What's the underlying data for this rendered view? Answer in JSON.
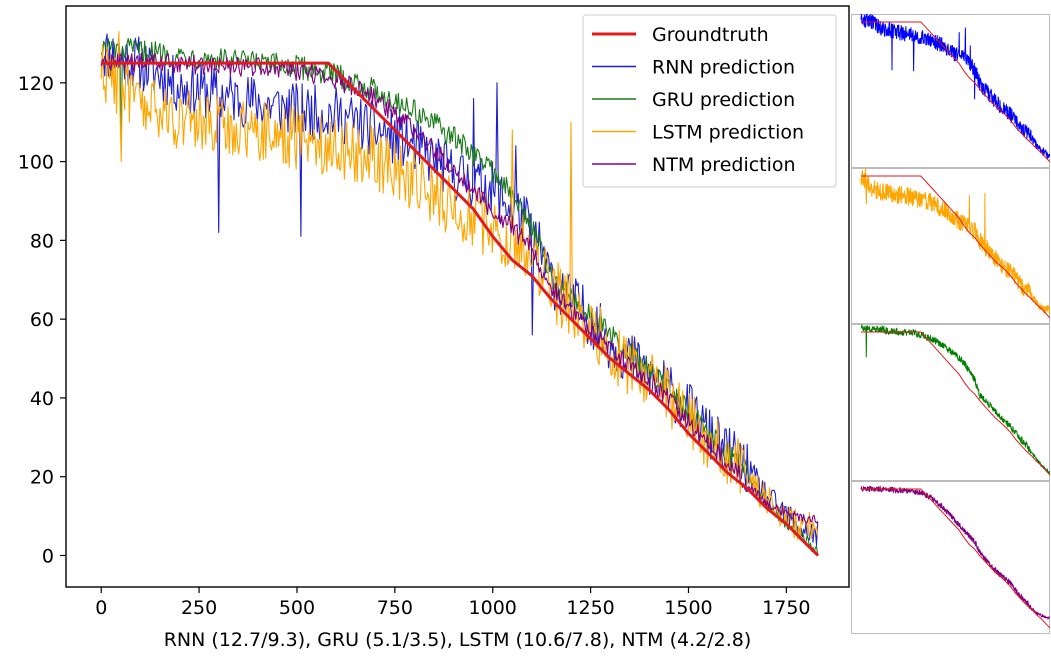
{
  "chart_data": {
    "type": "line",
    "xlabel": "RNN (12.7/9.3), GRU (5.1/3.5), LSTM (10.6/7.8), NTM (4.2/2.8)",
    "ylabel": "",
    "xlim": [
      -90,
      1910
    ],
    "ylim": [
      -8,
      139.5
    ],
    "xticks": [
      0,
      250,
      500,
      750,
      1000,
      1250,
      1500,
      1750
    ],
    "yticks": [
      0,
      20,
      40,
      60,
      80,
      100,
      120
    ],
    "grid": false,
    "legend_position": "top-right",
    "x_start": 0,
    "x_end": 1831,
    "groundtruth": {
      "name": "Groundtruth",
      "color": "#e31a1c",
      "points": [
        [
          0,
          125
        ],
        [
          580,
          125
        ],
        [
          600,
          123
        ],
        [
          650,
          118
        ],
        [
          700,
          113
        ],
        [
          750,
          108
        ],
        [
          800,
          103
        ],
        [
          850,
          98
        ],
        [
          900,
          93
        ],
        [
          950,
          88
        ],
        [
          1000,
          81
        ],
        [
          1050,
          75
        ],
        [
          1100,
          71
        ],
        [
          1150,
          65
        ],
        [
          1200,
          60
        ],
        [
          1250,
          55
        ],
        [
          1300,
          50
        ],
        [
          1350,
          46
        ],
        [
          1400,
          42
        ],
        [
          1450,
          37
        ],
        [
          1500,
          31
        ],
        [
          1550,
          26
        ],
        [
          1600,
          21
        ],
        [
          1650,
          17
        ],
        [
          1700,
          12
        ],
        [
          1750,
          8
        ],
        [
          1800,
          3
        ],
        [
          1831,
          0
        ]
      ]
    },
    "series": [
      {
        "name": "RNN prediction",
        "color": "#1f1fcc",
        "points": [
          [
            0,
            128
          ],
          [
            100,
            125
          ],
          [
            200,
            119
          ],
          [
            300,
            117
          ],
          [
            400,
            115
          ],
          [
            500,
            113
          ],
          [
            600,
            112
          ],
          [
            700,
            108
          ],
          [
            800,
            104
          ],
          [
            900,
            97
          ],
          [
            1000,
            93
          ],
          [
            1100,
            83
          ],
          [
            1150,
            70
          ],
          [
            1200,
            65
          ],
          [
            1250,
            60
          ],
          [
            1300,
            54
          ],
          [
            1350,
            50
          ],
          [
            1400,
            46
          ],
          [
            1450,
            42
          ],
          [
            1500,
            37
          ],
          [
            1550,
            31
          ],
          [
            1600,
            26
          ],
          [
            1650,
            22
          ],
          [
            1700,
            15
          ],
          [
            1750,
            10
          ],
          [
            1800,
            6
          ],
          [
            1831,
            5
          ]
        ],
        "spikes": [
          [
            300,
            82
          ],
          [
            510,
            81
          ],
          [
            950,
            116
          ],
          [
            1010,
            120
          ],
          [
            1060,
            104
          ],
          [
            1100,
            56
          ]
        ],
        "noise": 7
      },
      {
        "name": "GRU prediction",
        "color": "#1a7a1a",
        "points": [
          [
            0,
            129
          ],
          [
            100,
            128
          ],
          [
            200,
            127
          ],
          [
            300,
            126
          ],
          [
            400,
            125
          ],
          [
            500,
            124
          ],
          [
            600,
            122
          ],
          [
            700,
            118
          ],
          [
            800,
            113
          ],
          [
            900,
            106
          ],
          [
            1000,
            98
          ],
          [
            1100,
            84
          ],
          [
            1150,
            70
          ],
          [
            1200,
            66
          ],
          [
            1250,
            61
          ],
          [
            1300,
            56
          ],
          [
            1350,
            51
          ],
          [
            1400,
            47
          ],
          [
            1450,
            42
          ],
          [
            1500,
            37
          ],
          [
            1550,
            31
          ],
          [
            1600,
            26
          ],
          [
            1650,
            21
          ],
          [
            1700,
            14
          ],
          [
            1750,
            8
          ],
          [
            1800,
            4
          ],
          [
            1831,
            1
          ]
        ],
        "spikes": [
          [
            50,
            103
          ]
        ],
        "noise": 3
      },
      {
        "name": "LSTM prediction",
        "color": "#ffa500",
        "points": [
          [
            0,
            124
          ],
          [
            100,
            114
          ],
          [
            200,
            111
          ],
          [
            300,
            109
          ],
          [
            400,
            108
          ],
          [
            500,
            106
          ],
          [
            600,
            104
          ],
          [
            700,
            101
          ],
          [
            800,
            95
          ],
          [
            900,
            88
          ],
          [
            1000,
            83
          ],
          [
            1100,
            77
          ],
          [
            1150,
            68
          ],
          [
            1200,
            63
          ],
          [
            1250,
            58
          ],
          [
            1300,
            53
          ],
          [
            1350,
            48
          ],
          [
            1400,
            44
          ],
          [
            1450,
            40
          ],
          [
            1500,
            35
          ],
          [
            1550,
            29
          ],
          [
            1600,
            25
          ],
          [
            1650,
            20
          ],
          [
            1700,
            14
          ],
          [
            1750,
            9
          ],
          [
            1800,
            7
          ],
          [
            1831,
            7
          ]
        ],
        "spikes": [
          [
            45,
            133
          ],
          [
            50,
            100
          ],
          [
            1050,
            108
          ],
          [
            1200,
            110
          ]
        ],
        "noise": 8
      },
      {
        "name": "NTM prediction",
        "color": "#800080",
        "points": [
          [
            0,
            125
          ],
          [
            100,
            125
          ],
          [
            200,
            125
          ],
          [
            300,
            124
          ],
          [
            400,
            124
          ],
          [
            500,
            123
          ],
          [
            600,
            121
          ],
          [
            700,
            116
          ],
          [
            800,
            108
          ],
          [
            900,
            98
          ],
          [
            1000,
            88
          ],
          [
            1100,
            78
          ],
          [
            1150,
            68
          ],
          [
            1200,
            62
          ],
          [
            1250,
            57
          ],
          [
            1300,
            52
          ],
          [
            1350,
            48
          ],
          [
            1400,
            44
          ],
          [
            1450,
            40
          ],
          [
            1500,
            34
          ],
          [
            1550,
            28
          ],
          [
            1600,
            24
          ],
          [
            1650,
            18
          ],
          [
            1700,
            13
          ],
          [
            1750,
            11
          ],
          [
            1800,
            9
          ],
          [
            1831,
            9
          ]
        ],
        "spikes": [],
        "noise": 2.5
      }
    ],
    "legend": [
      "Groundtruth",
      "RNN prediction",
      "GRU prediction",
      "LSTM prediction",
      "NTM prediction"
    ],
    "insets": [
      {
        "series": "RNN prediction",
        "color": "#0000ff"
      },
      {
        "series": "LSTM prediction",
        "color": "#ffa500"
      },
      {
        "series": "GRU prediction",
        "color": "#008000"
      },
      {
        "series": "NTM prediction",
        "color": "#800080"
      }
    ]
  }
}
